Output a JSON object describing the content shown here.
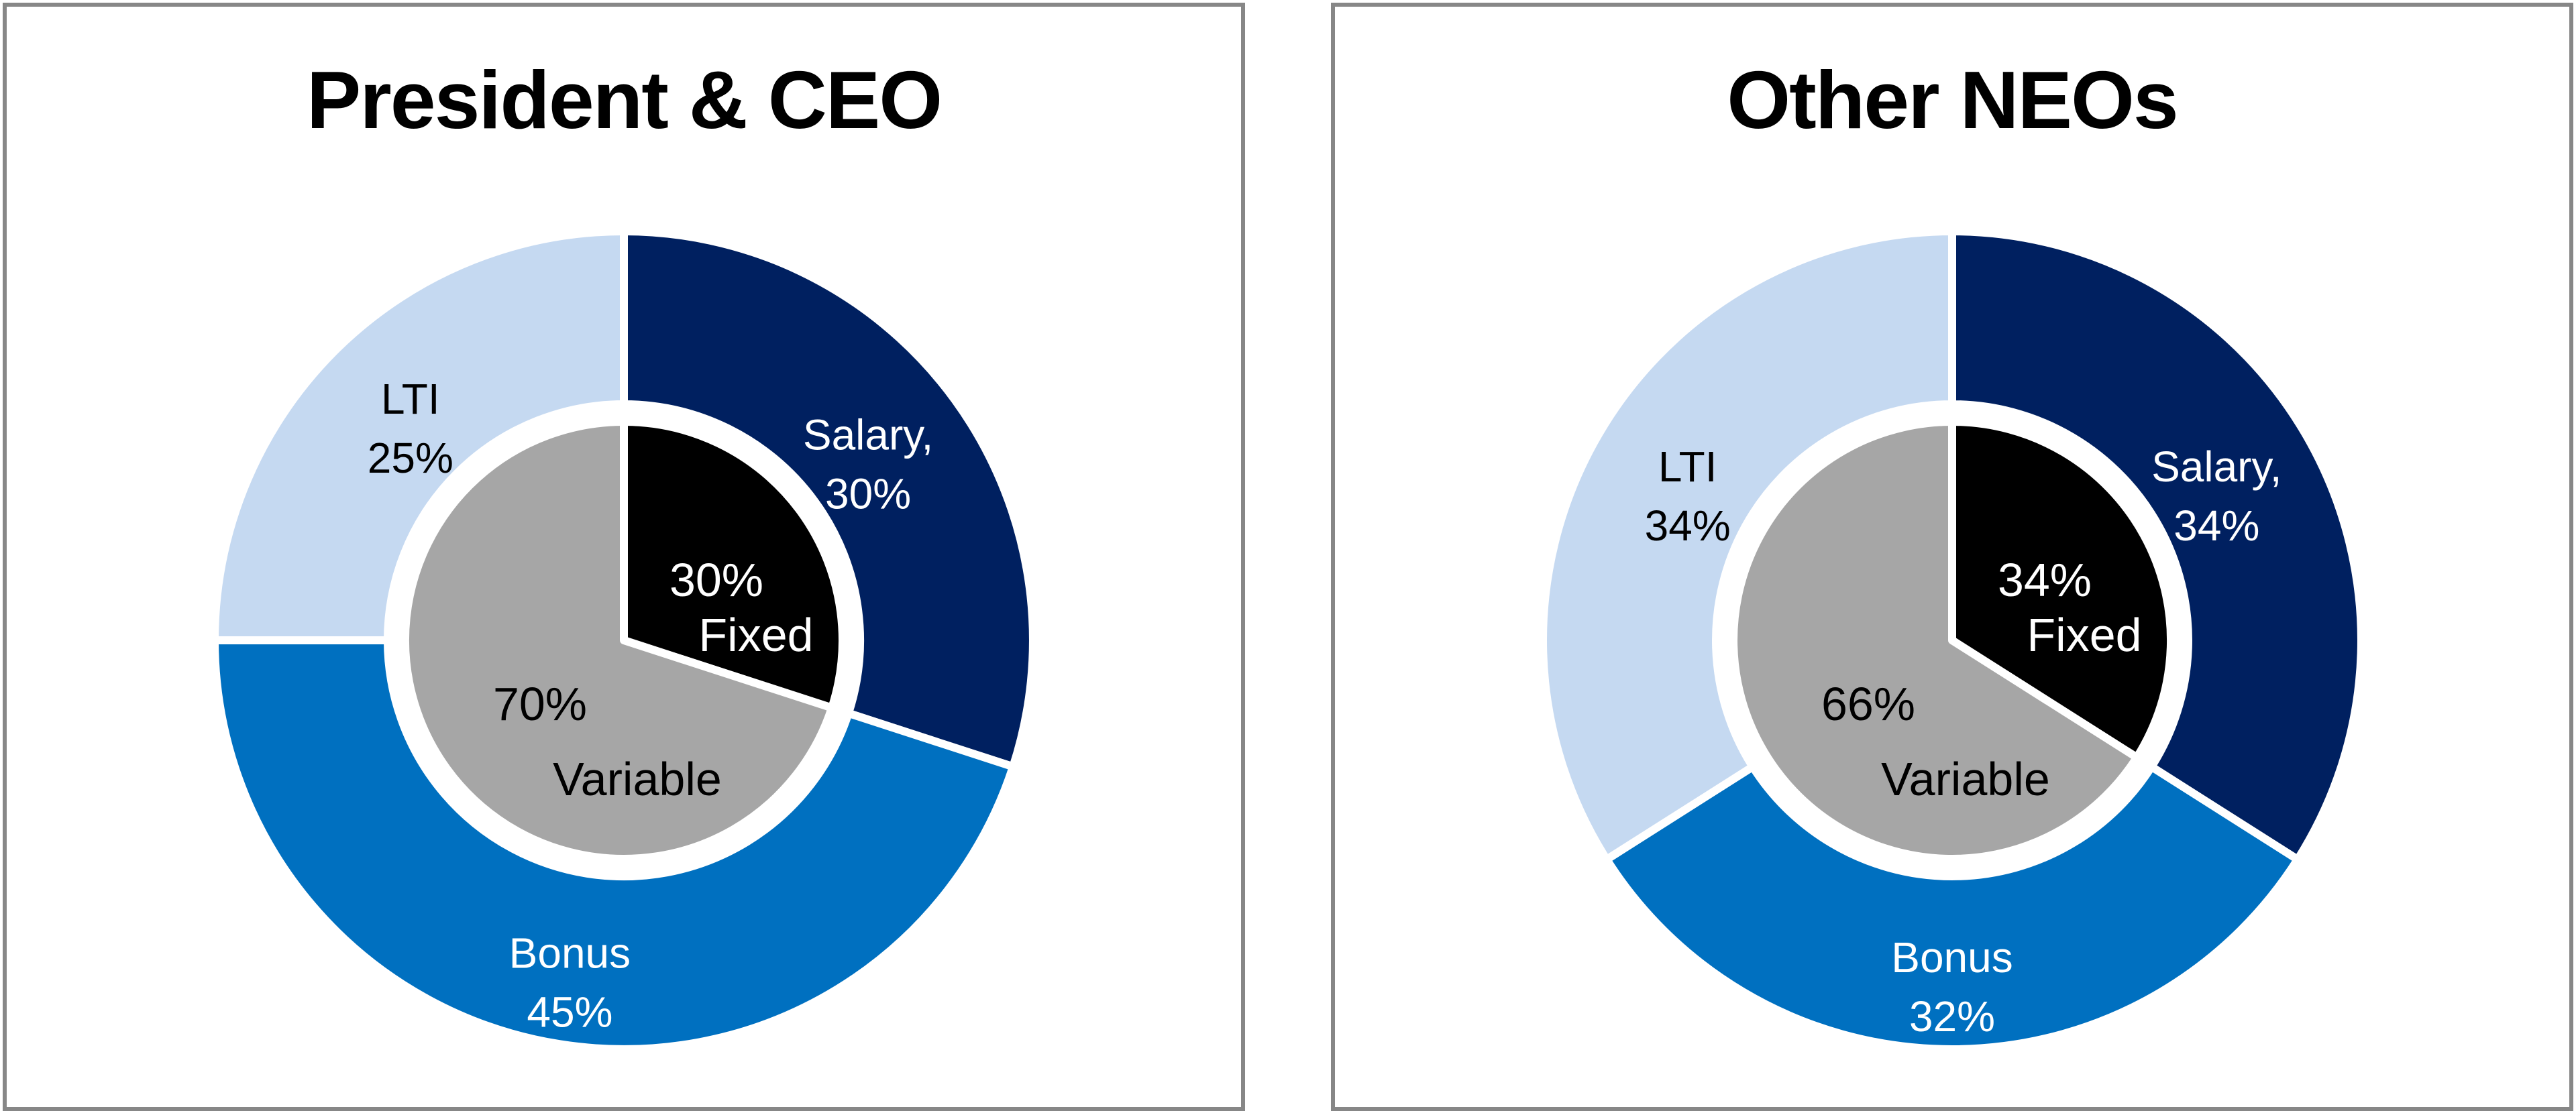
{
  "page": {
    "background_color": "#ffffff",
    "panel_border_color": "#878787",
    "separator_color": "#ffffff"
  },
  "chart_data": [
    {
      "type": "pie",
      "subtype": "donut-ring-with-inner-pie",
      "title": "President & CEO",
      "outer_ring": {
        "categories": [
          "Salary",
          "Bonus",
          "LTI"
        ],
        "values": [
          30,
          45,
          25
        ],
        "slices": [
          {
            "label": "Salary,",
            "value": 30,
            "value_label": "30%",
            "color": "#002060",
            "text_color": "#ffffff"
          },
          {
            "label": "Bonus",
            "value": 45,
            "value_label": "45%",
            "color": "#0070C0",
            "text_color": "#ffffff"
          },
          {
            "label": "LTI",
            "value": 25,
            "value_label": "25%",
            "color": "#C5D9F1",
            "text_color": "#000000"
          }
        ]
      },
      "inner_pie": {
        "categories": [
          "Fixed",
          "Variable"
        ],
        "values": [
          30,
          70
        ],
        "slices": [
          {
            "label": "Fixed",
            "value": 30,
            "value_label": "30%",
            "color": "#000000",
            "text_color": "#ffffff"
          },
          {
            "label": "Variable",
            "value": 70,
            "value_label": "70%",
            "color": "#A6A6A6",
            "text_color": "#000000"
          }
        ]
      },
      "layout_hints": {
        "start_angle_deg": 0,
        "direction": "clockwise",
        "legend": "none",
        "labels": "on-slices"
      }
    },
    {
      "type": "pie",
      "subtype": "donut-ring-with-inner-pie",
      "title": "Other NEOs",
      "outer_ring": {
        "categories": [
          "Salary",
          "Bonus",
          "LTI"
        ],
        "values": [
          34,
          32,
          34
        ],
        "slices": [
          {
            "label": "Salary,",
            "value": 34,
            "value_label": "34%",
            "color": "#002060",
            "text_color": "#ffffff"
          },
          {
            "label": "Bonus",
            "value": 32,
            "value_label": "32%",
            "color": "#0070C0",
            "text_color": "#ffffff"
          },
          {
            "label": "LTI",
            "value": 34,
            "value_label": "34%",
            "color": "#C5D9F1",
            "text_color": "#000000"
          }
        ]
      },
      "inner_pie": {
        "categories": [
          "Fixed",
          "Variable"
        ],
        "values": [
          34,
          66
        ],
        "slices": [
          {
            "label": "Fixed",
            "value": 34,
            "value_label": "34%",
            "color": "#000000",
            "text_color": "#ffffff"
          },
          {
            "label": "Variable",
            "value": 66,
            "value_label": "66%",
            "color": "#A6A6A6",
            "text_color": "#000000"
          }
        ]
      },
      "layout_hints": {
        "start_angle_deg": 0,
        "direction": "clockwise",
        "legend": "none",
        "labels": "on-slices"
      }
    }
  ]
}
